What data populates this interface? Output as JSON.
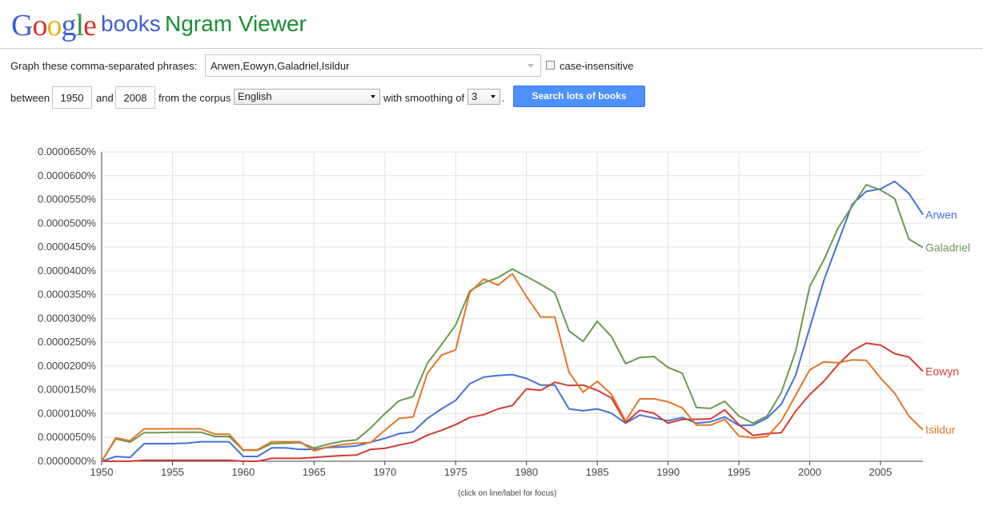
{
  "header": {
    "logo_letters": [
      {
        "ch": "G",
        "color": "#3b5fd6"
      },
      {
        "ch": "o",
        "color": "#d8352a"
      },
      {
        "ch": "o",
        "color": "#e8b21b"
      },
      {
        "ch": "g",
        "color": "#3b5fd6"
      },
      {
        "ch": "l",
        "color": "#2e9a3e"
      },
      {
        "ch": "e",
        "color": "#d8352a"
      }
    ],
    "books": "books",
    "app_name": "Ngram Viewer"
  },
  "form": {
    "phrases_label": "Graph these comma-separated phrases:",
    "phrases_value": "Arwen,Eowyn,Galadriel,Isildur",
    "case_insensitive_label": "case-insensitive",
    "case_insensitive_checked": false,
    "between_label": "between",
    "year_start": "1950",
    "and_label": "and",
    "year_end": "2008",
    "corpus_label": "from the corpus",
    "corpus_value": "English",
    "smoothing_label": "with smoothing of",
    "smoothing_value": "3",
    "period": ".",
    "search_button": "Search lots of books"
  },
  "footer_note": "(click on line/label for focus)",
  "chart_data": {
    "type": "line",
    "x": [
      1950,
      1951,
      1952,
      1953,
      1954,
      1955,
      1956,
      1957,
      1958,
      1959,
      1960,
      1961,
      1962,
      1963,
      1964,
      1965,
      1966,
      1967,
      1968,
      1969,
      1970,
      1971,
      1972,
      1973,
      1974,
      1975,
      1976,
      1977,
      1978,
      1979,
      1980,
      1981,
      1982,
      1983,
      1984,
      1985,
      1986,
      1987,
      1988,
      1989,
      1990,
      1991,
      1992,
      1993,
      1994,
      1995,
      1996,
      1997,
      1998,
      1999,
      2000,
      2001,
      2002,
      2003,
      2004,
      2005,
      2006,
      2007,
      2008
    ],
    "xlim": [
      1950,
      2008
    ],
    "ylim": [
      0,
      6.5e-06
    ],
    "y_unit": "%",
    "x_ticks": [
      "1950",
      "1955",
      "1960",
      "1965",
      "1970",
      "1975",
      "1980",
      "1985",
      "1990",
      "1995",
      "2000",
      "2005"
    ],
    "y_ticks": [
      "0.0000000%",
      "0.0000050%",
      "0.0000100%",
      "0.0000150%",
      "0.0000200%",
      "0.0000250%",
      "0.0000300%",
      "0.0000350%",
      "0.0000400%",
      "0.0000450%",
      "0.0000500%",
      "0.0000550%",
      "0.0000600%",
      "0.0000650%"
    ],
    "grid": true,
    "legend": "labels at line ends (right)",
    "series": [
      {
        "name": "Arwen",
        "color": "#4572d6",
        "values": [
          0.0,
          1e-07,
          8e-08,
          3.7e-07,
          3.7e-07,
          3.7e-07,
          3.8e-07,
          4.1e-07,
          4.1e-07,
          4.1e-07,
          1e-07,
          1e-07,
          2.8e-07,
          2.8e-07,
          2.5e-07,
          2.5e-07,
          2.9e-07,
          3e-07,
          3.2e-07,
          4e-07,
          4.8e-07,
          5.8e-07,
          6.2e-07,
          9e-07,
          1.1e-06,
          1.28e-06,
          1.63e-06,
          1.77e-06,
          1.8e-06,
          1.82e-06,
          1.74e-06,
          1.6e-06,
          1.6e-06,
          1.1e-06,
          1.06e-06,
          1.1e-06,
          1.01e-06,
          8e-07,
          9.7e-07,
          9.1e-07,
          8.5e-07,
          9.2e-07,
          8e-07,
          8.3e-07,
          9.3e-07,
          7.5e-07,
          7.6e-07,
          9.1e-07,
          1.2e-06,
          1.8e-06,
          2.8e-06,
          3.8e-06,
          4.6e-06,
          5.4e-06,
          5.67e-06,
          5.72e-06,
          5.88e-06,
          5.63e-06,
          5.18e-06
        ]
      },
      {
        "name": "Galadriel",
        "color": "#6a9a4f",
        "values": [
          0.0,
          4.7e-07,
          4e-07,
          6e-07,
          6e-07,
          6.1e-07,
          6.1e-07,
          6.1e-07,
          5.2e-07,
          5.2e-07,
          2.3e-07,
          2.3e-07,
          3.7e-07,
          3.8e-07,
          3.9e-07,
          2.8e-07,
          3.6e-07,
          4.2e-07,
          4.5e-07,
          7e-07,
          1e-06,
          1.27e-06,
          1.36e-06,
          2.06e-06,
          2.45e-06,
          2.86e-06,
          3.58e-06,
          3.75e-06,
          3.86e-06,
          4.04e-06,
          3.88e-06,
          3.72e-06,
          3.54e-06,
          2.74e-06,
          2.52e-06,
          2.94e-06,
          2.62e-06,
          2.05e-06,
          2.18e-06,
          2.2e-06,
          1.97e-06,
          1.85e-06,
          1.13e-06,
          1.11e-06,
          1.26e-06,
          9.5e-07,
          8e-07,
          9.5e-07,
          1.45e-06,
          2.3e-06,
          3.67e-06,
          4.23e-06,
          4.9e-06,
          5.36e-06,
          5.81e-06,
          5.7e-06,
          5.52e-06,
          4.67e-06,
          4.49e-06
        ]
      },
      {
        "name": "Eowyn",
        "color": "#d23c33",
        "values": [
          0.0,
          0.0,
          0.0,
          2e-08,
          2e-08,
          2e-08,
          2e-08,
          2e-08,
          2e-08,
          2e-08,
          0.0,
          0.0,
          6e-08,
          6e-08,
          6e-08,
          8e-08,
          1e-07,
          1.2e-07,
          1.3e-07,
          2.5e-07,
          2.7e-07,
          3.4e-07,
          4e-07,
          5.5e-07,
          6.5e-07,
          7.7e-07,
          9.2e-07,
          9.8e-07,
          1.1e-06,
          1.17e-06,
          1.52e-06,
          1.49e-06,
          1.66e-06,
          1.59e-06,
          1.6e-06,
          1.49e-06,
          1.33e-06,
          8.1e-07,
          1.07e-06,
          1.01e-06,
          8e-07,
          8.8e-07,
          8.8e-07,
          8.9e-07,
          1.08e-06,
          7.7e-07,
          5.4e-07,
          5.8e-07,
          6e-07,
          1.05e-06,
          1.4e-06,
          1.68e-06,
          2.03e-06,
          2.32e-06,
          2.48e-06,
          2.44e-06,
          2.26e-06,
          2.19e-06,
          1.89e-06
        ]
      },
      {
        "name": "Isildur",
        "color": "#e47627",
        "values": [
          0.0,
          4.9e-07,
          4.3e-07,
          6.8e-07,
          6.8e-07,
          6.8e-07,
          6.8e-07,
          6.8e-07,
          5.7e-07,
          5.7e-07,
          2.4e-07,
          2.4e-07,
          4.1e-07,
          4.1e-07,
          4.1e-07,
          2.2e-07,
          3e-07,
          3.5e-07,
          3.8e-07,
          3.9e-07,
          6.5e-07,
          9e-07,
          9.3e-07,
          1.85e-06,
          2.23e-06,
          2.34e-06,
          3.55e-06,
          3.83e-06,
          3.7e-06,
          3.94e-06,
          3.46e-06,
          3.03e-06,
          3.03e-06,
          1.87e-06,
          1.45e-06,
          1.68e-06,
          1.41e-06,
          8.5e-07,
          1.31e-06,
          1.31e-06,
          1.25e-06,
          1.12e-06,
          7.6e-07,
          7.6e-07,
          8.8e-07,
          5.3e-07,
          4.9e-07,
          5.2e-07,
          8.5e-07,
          1.38e-06,
          1.92e-06,
          2.09e-06,
          2.07e-06,
          2.13e-06,
          2.12e-06,
          1.75e-06,
          1.43e-06,
          9.5e-07,
          6.6e-07
        ]
      }
    ]
  }
}
